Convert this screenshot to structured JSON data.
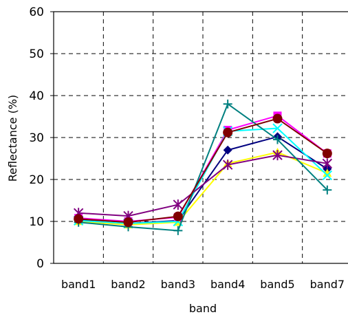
{
  "chart_data": {
    "type": "line",
    "title": "",
    "xlabel": "band",
    "ylabel": "Reflectance (%)",
    "categories": [
      "band1",
      "band2",
      "band3",
      "band4",
      "band5",
      "band7"
    ],
    "ylim": [
      0,
      60
    ],
    "yticks": [
      0,
      10,
      20,
      30,
      40,
      50,
      60
    ],
    "grid": "dashed",
    "legend": "none",
    "series": [
      {
        "color": "#000080",
        "marker": "diamond",
        "values": [
          10.5,
          9.5,
          10.2,
          27.0,
          30.2,
          22.5
        ]
      },
      {
        "color": "#FF00FF",
        "marker": "square",
        "values": [
          10.8,
          10.0,
          11.0,
          31.8,
          35.2,
          26.2
        ]
      },
      {
        "color": "#FFFF00",
        "marker": "triangle",
        "values": [
          10.0,
          9.2,
          9.8,
          23.8,
          26.5,
          21.5
        ]
      },
      {
        "color": "#00FFFF",
        "marker": "x",
        "values": [
          10.2,
          9.5,
          10.0,
          31.5,
          32.2,
          21.0
        ]
      },
      {
        "color": "#800080",
        "marker": "star",
        "values": [
          12.0,
          11.3,
          14.0,
          23.5,
          25.8,
          23.8
        ]
      },
      {
        "color": "#008080",
        "marker": "plus",
        "values": [
          9.8,
          8.7,
          7.8,
          38.0,
          29.5,
          17.5
        ]
      },
      {
        "color": "#800000",
        "marker": "circle",
        "values": [
          10.6,
          9.8,
          11.2,
          31.2,
          34.5,
          26.2
        ]
      }
    ]
  }
}
